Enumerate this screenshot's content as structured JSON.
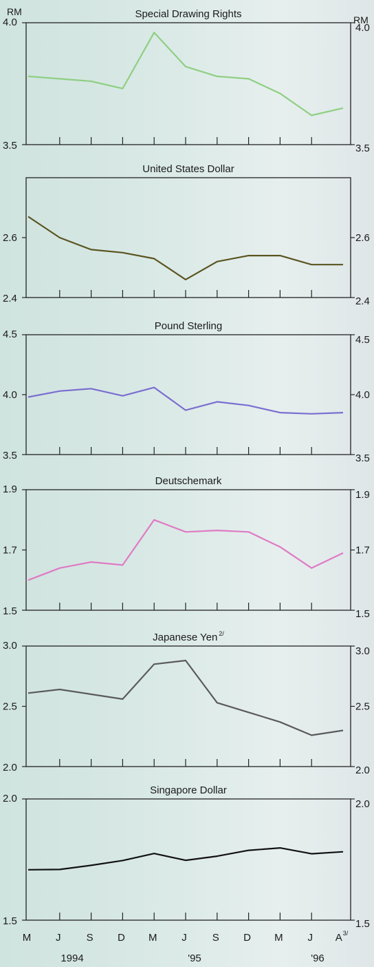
{
  "unit_left": "RM",
  "unit_right": "RM",
  "x_ticks": [
    "M",
    "J",
    "S",
    "D",
    "M",
    "J",
    "S",
    "D",
    "M",
    "J",
    "A"
  ],
  "last_tick_footnote": "3/",
  "years": [
    "1994",
    "'95",
    "'96"
  ],
  "chart_data": [
    {
      "type": "line",
      "title": "Special Drawing Rights",
      "title_footnote": "",
      "ylim": [
        3.5,
        4.0
      ],
      "yticks": [
        "4.0",
        "3.5"
      ],
      "color": "#8fcf83",
      "series": [
        {
          "values": [
            3.78,
            3.77,
            3.76,
            3.73,
            3.96,
            3.82,
            3.78,
            3.77,
            3.71,
            3.62,
            3.65
          ]
        }
      ]
    },
    {
      "type": "line",
      "title": "United States Dollar",
      "title_footnote": "",
      "ylim": [
        2.4,
        2.8
      ],
      "yticks": [
        "2.6",
        "2.4"
      ],
      "color": "#5a5420",
      "series": [
        {
          "values": [
            2.67,
            2.6,
            2.56,
            2.55,
            2.53,
            2.46,
            2.52,
            2.54,
            2.54,
            2.51,
            2.51
          ]
        }
      ]
    },
    {
      "type": "line",
      "title": "Pound Sterling",
      "title_footnote": "",
      "ylim": [
        3.5,
        4.5
      ],
      "yticks": [
        "4.5",
        "4.0",
        "3.5"
      ],
      "color": "#7a6ed0",
      "series": [
        {
          "values": [
            3.98,
            4.03,
            4.05,
            3.99,
            4.06,
            3.87,
            3.94,
            3.91,
            3.85,
            3.84,
            3.85
          ]
        }
      ]
    },
    {
      "type": "line",
      "title": "Deutschemark",
      "title_footnote": "",
      "ylim": [
        1.5,
        1.9
      ],
      "yticks": [
        "1.9",
        "1.7",
        "1.5"
      ],
      "color": "#e07ac4",
      "series": [
        {
          "values": [
            1.6,
            1.64,
            1.66,
            1.65,
            1.8,
            1.76,
            1.765,
            1.76,
            1.71,
            1.64,
            1.69
          ]
        }
      ]
    },
    {
      "type": "line",
      "title": "Japanese Yen",
      "title_footnote": "2/",
      "ylim": [
        2.0,
        3.0
      ],
      "yticks": [
        "3.0",
        "2.5",
        "2.0"
      ],
      "color": "#5a5a5a",
      "series": [
        {
          "values": [
            2.61,
            2.64,
            2.6,
            2.56,
            2.85,
            2.88,
            2.53,
            2.45,
            2.37,
            2.26,
            2.3
          ]
        }
      ]
    },
    {
      "type": "line",
      "title": "Singapore Dollar",
      "title_footnote": "",
      "ylim": [
        1.5,
        2.0
      ],
      "yticks": [
        "2.0",
        "1.5"
      ],
      "color": "#111111",
      "series": [
        {
          "values": [
            1.708,
            1.709,
            1.726,
            1.746,
            1.775,
            1.747,
            1.764,
            1.788,
            1.798,
            1.774,
            1.782
          ]
        }
      ]
    }
  ]
}
